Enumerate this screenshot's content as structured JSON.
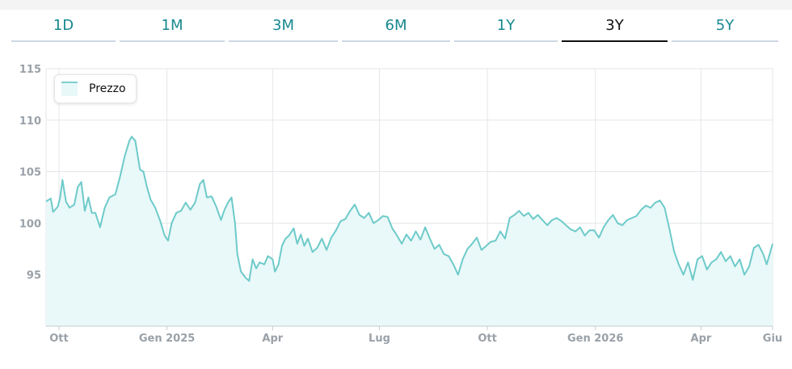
{
  "tabs": [
    {
      "label": "1D",
      "active": false
    },
    {
      "label": "1M",
      "active": false
    },
    {
      "label": "3M",
      "active": false
    },
    {
      "label": "6M",
      "active": false
    },
    {
      "label": "1Y",
      "active": false
    },
    {
      "label": "3Y",
      "active": true
    },
    {
      "label": "5Y",
      "active": false
    }
  ],
  "colors": {
    "tab_text": "#17888f",
    "line": "#6ecaca",
    "fill": "#e9f8f8"
  },
  "chart_data": {
    "type": "area",
    "legend": {
      "label": "Prezzo",
      "position": "top-left"
    },
    "ylim": [
      90,
      115
    ],
    "yticks": [
      95,
      100,
      105,
      110,
      115
    ],
    "xlim": [
      "2024-09-20",
      "2026-06-01"
    ],
    "xticks": [
      {
        "label": "Ott",
        "date": "2024-10-01"
      },
      {
        "label": "Gen 2025",
        "date": "2025-01-01"
      },
      {
        "label": "Apr",
        "date": "2025-04-01"
      },
      {
        "label": "Lug",
        "date": "2025-07-01"
      },
      {
        "label": "Ott",
        "date": "2025-10-01"
      },
      {
        "label": "Gen 2026",
        "date": "2026-01-01"
      },
      {
        "label": "Apr",
        "date": "2026-04-01"
      },
      {
        "label": "Giu",
        "date": "2026-06-01"
      }
    ],
    "grid": true,
    "series": [
      {
        "name": "Prezzo",
        "points": [
          [
            "2024-09-20",
            102.1
          ],
          [
            "2024-09-24",
            102.4
          ],
          [
            "2024-09-26",
            101.1
          ],
          [
            "2024-09-30",
            101.6
          ],
          [
            "2024-10-02",
            102.5
          ],
          [
            "2024-10-04",
            104.2
          ],
          [
            "2024-10-07",
            102.1
          ],
          [
            "2024-10-10",
            101.5
          ],
          [
            "2024-10-14",
            101.8
          ],
          [
            "2024-10-17",
            103.5
          ],
          [
            "2024-10-20",
            104.0
          ],
          [
            "2024-10-23",
            101.2
          ],
          [
            "2024-10-26",
            102.5
          ],
          [
            "2024-10-29",
            101.0
          ],
          [
            "2024-11-01",
            101.0
          ],
          [
            "2024-11-05",
            99.6
          ],
          [
            "2024-11-09",
            101.5
          ],
          [
            "2024-11-13",
            102.5
          ],
          [
            "2024-11-18",
            102.8
          ],
          [
            "2024-11-22",
            104.5
          ],
          [
            "2024-11-26",
            106.5
          ],
          [
            "2024-11-30",
            108.0
          ],
          [
            "2024-12-02",
            108.4
          ],
          [
            "2024-12-05",
            108.0
          ],
          [
            "2024-12-09",
            105.2
          ],
          [
            "2024-12-12",
            105.0
          ],
          [
            "2024-12-15",
            103.5
          ],
          [
            "2024-12-18",
            102.3
          ],
          [
            "2024-12-22",
            101.5
          ],
          [
            "2024-12-26",
            100.3
          ],
          [
            "2024-12-30",
            98.8
          ],
          [
            "2025-01-02",
            98.3
          ],
          [
            "2025-01-05",
            100.0
          ],
          [
            "2025-01-09",
            101.0
          ],
          [
            "2025-01-13",
            101.2
          ],
          [
            "2025-01-17",
            102.0
          ],
          [
            "2025-01-21",
            101.3
          ],
          [
            "2025-01-25",
            102.0
          ],
          [
            "2025-01-29",
            103.8
          ],
          [
            "2025-02-01",
            104.2
          ],
          [
            "2025-02-04",
            102.5
          ],
          [
            "2025-02-08",
            102.6
          ],
          [
            "2025-02-12",
            101.6
          ],
          [
            "2025-02-16",
            100.3
          ],
          [
            "2025-02-19",
            101.3
          ],
          [
            "2025-02-22",
            102.0
          ],
          [
            "2025-02-25",
            102.5
          ],
          [
            "2025-02-28",
            100.0
          ],
          [
            "2025-03-02",
            97.0
          ],
          [
            "2025-03-05",
            95.3
          ],
          [
            "2025-03-09",
            94.7
          ],
          [
            "2025-03-12",
            94.4
          ],
          [
            "2025-03-15",
            96.5
          ],
          [
            "2025-03-18",
            95.6
          ],
          [
            "2025-03-21",
            96.2
          ],
          [
            "2025-03-25",
            96.0
          ],
          [
            "2025-03-28",
            96.8
          ],
          [
            "2025-04-01",
            96.5
          ],
          [
            "2025-04-03",
            95.3
          ],
          [
            "2025-04-06",
            96.0
          ],
          [
            "2025-04-09",
            97.8
          ],
          [
            "2025-04-12",
            98.5
          ],
          [
            "2025-04-15",
            98.8
          ],
          [
            "2025-04-19",
            99.5
          ],
          [
            "2025-04-22",
            98.0
          ],
          [
            "2025-04-25",
            98.9
          ],
          [
            "2025-04-28",
            97.8
          ],
          [
            "2025-05-01",
            98.5
          ],
          [
            "2025-05-05",
            97.2
          ],
          [
            "2025-05-09",
            97.6
          ],
          [
            "2025-05-13",
            98.5
          ],
          [
            "2025-05-17",
            97.4
          ],
          [
            "2025-05-21",
            98.6
          ],
          [
            "2025-05-25",
            99.3
          ],
          [
            "2025-05-29",
            100.2
          ],
          [
            "2025-06-02",
            100.4
          ],
          [
            "2025-06-06",
            101.2
          ],
          [
            "2025-06-10",
            101.8
          ],
          [
            "2025-06-14",
            100.8
          ],
          [
            "2025-06-18",
            100.5
          ],
          [
            "2025-06-22",
            101.0
          ],
          [
            "2025-06-26",
            100.0
          ],
          [
            "2025-06-30",
            100.3
          ],
          [
            "2025-07-04",
            100.7
          ],
          [
            "2025-07-08",
            100.6
          ],
          [
            "2025-07-12",
            99.5
          ],
          [
            "2025-07-16",
            98.8
          ],
          [
            "2025-07-20",
            98.0
          ],
          [
            "2025-07-24",
            98.9
          ],
          [
            "2025-07-28",
            98.3
          ],
          [
            "2025-08-01",
            99.2
          ],
          [
            "2025-08-05",
            98.4
          ],
          [
            "2025-08-09",
            99.6
          ],
          [
            "2025-08-13",
            98.5
          ],
          [
            "2025-08-17",
            97.5
          ],
          [
            "2025-08-21",
            97.9
          ],
          [
            "2025-08-25",
            97.0
          ],
          [
            "2025-08-29",
            96.8
          ],
          [
            "2025-09-02",
            96.0
          ],
          [
            "2025-09-06",
            95.0
          ],
          [
            "2025-09-10",
            96.5
          ],
          [
            "2025-09-14",
            97.5
          ],
          [
            "2025-09-18",
            98.0
          ],
          [
            "2025-09-22",
            98.6
          ],
          [
            "2025-09-26",
            97.4
          ],
          [
            "2025-09-30",
            97.8
          ],
          [
            "2025-10-04",
            98.2
          ],
          [
            "2025-10-08",
            98.3
          ],
          [
            "2025-10-12",
            99.2
          ],
          [
            "2025-10-16",
            98.5
          ],
          [
            "2025-10-20",
            100.5
          ],
          [
            "2025-10-24",
            100.8
          ],
          [
            "2025-10-28",
            101.2
          ],
          [
            "2025-11-01",
            100.7
          ],
          [
            "2025-11-05",
            101.0
          ],
          [
            "2025-11-09",
            100.4
          ],
          [
            "2025-11-13",
            100.8
          ],
          [
            "2025-11-17",
            100.3
          ],
          [
            "2025-11-21",
            99.8
          ],
          [
            "2025-11-25",
            100.3
          ],
          [
            "2025-11-29",
            100.5
          ],
          [
            "2025-12-03",
            100.2
          ],
          [
            "2025-12-07",
            99.8
          ],
          [
            "2025-12-11",
            99.4
          ],
          [
            "2025-12-15",
            99.2
          ],
          [
            "2025-12-19",
            99.6
          ],
          [
            "2025-12-23",
            98.8
          ],
          [
            "2025-12-27",
            99.3
          ],
          [
            "2025-12-31",
            99.3
          ],
          [
            "2026-01-04",
            98.6
          ],
          [
            "2026-01-08",
            99.6
          ],
          [
            "2026-01-12",
            100.3
          ],
          [
            "2026-01-16",
            100.8
          ],
          [
            "2026-01-20",
            100.0
          ],
          [
            "2026-01-24",
            99.8
          ],
          [
            "2026-01-28",
            100.3
          ],
          [
            "2026-02-01",
            100.5
          ],
          [
            "2026-02-05",
            100.7
          ],
          [
            "2026-02-09",
            101.3
          ],
          [
            "2026-02-13",
            101.7
          ],
          [
            "2026-02-17",
            101.5
          ],
          [
            "2026-02-21",
            102.0
          ],
          [
            "2026-02-25",
            102.2
          ],
          [
            "2026-03-01",
            101.5
          ],
          [
            "2026-03-05",
            99.5
          ],
          [
            "2026-03-09",
            97.3
          ],
          [
            "2026-03-13",
            96.0
          ],
          [
            "2026-03-17",
            95.0
          ],
          [
            "2026-03-21",
            96.2
          ],
          [
            "2026-03-25",
            94.5
          ],
          [
            "2026-03-29",
            96.5
          ],
          [
            "2026-04-02",
            96.8
          ],
          [
            "2026-04-06",
            95.5
          ],
          [
            "2026-04-10",
            96.2
          ],
          [
            "2026-04-14",
            96.5
          ],
          [
            "2026-04-18",
            97.2
          ],
          [
            "2026-04-22",
            96.3
          ],
          [
            "2026-04-26",
            96.8
          ],
          [
            "2026-04-30",
            95.8
          ],
          [
            "2026-05-04",
            96.5
          ],
          [
            "2026-05-08",
            95.0
          ],
          [
            "2026-05-12",
            95.8
          ],
          [
            "2026-05-16",
            97.6
          ],
          [
            "2026-05-20",
            97.9
          ],
          [
            "2026-05-24",
            97.0
          ],
          [
            "2026-05-27",
            96.0
          ],
          [
            "2026-05-30",
            97.2
          ],
          [
            "2026-06-01",
            98.0
          ]
        ]
      }
    ]
  }
}
